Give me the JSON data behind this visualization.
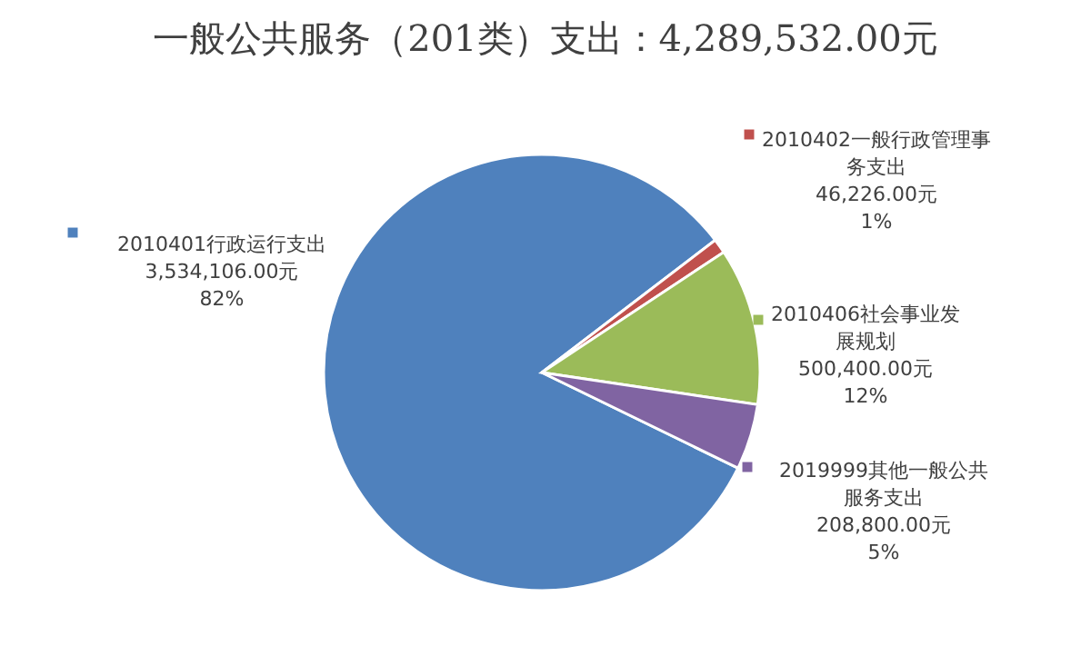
{
  "chart_data": {
    "type": "pie",
    "title": "一般公共服务（201类）支出：4,289,532.00元",
    "categories": [
      "2010401行政运行支出",
      "2010402一般行政管理事务支出",
      "2010406社会事业发展规划",
      "2019999其他一般公共服务支出"
    ],
    "values": [
      3534106,
      46226,
      500400,
      208800
    ],
    "colors": [
      "#4f81bd",
      "#c0504d",
      "#9bbb59",
      "#8064a2"
    ],
    "value_labels": [
      "3,534,106.00元\n82%",
      "46,226.00元\n1%",
      "500,400.00元\n12%",
      "208,800.00元\n5%"
    ],
    "legend": "right"
  }
}
